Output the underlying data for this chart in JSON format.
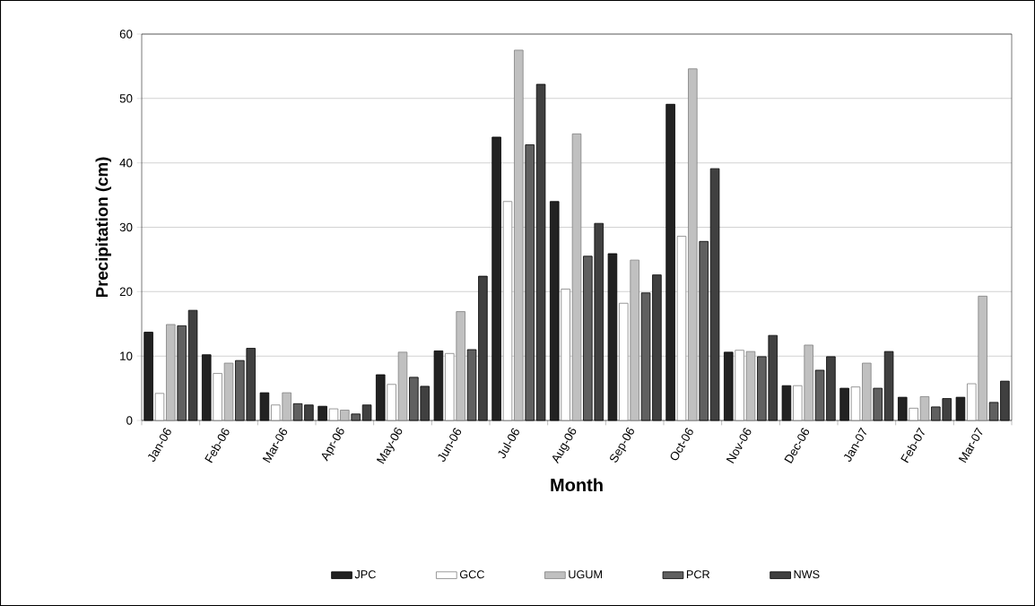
{
  "chart_data": {
    "type": "bar",
    "xlabel": "Month",
    "ylabel": "Precipitation (cm)",
    "categories": [
      "Jan-06",
      "Feb-06",
      "Mar-06",
      "Apr-06",
      "May-06",
      "Jun-06",
      "Jul-06",
      "Aug-06",
      "Sep-06",
      "Oct-06",
      "Nov-06",
      "Dec-06",
      "Jan-07",
      "Feb-07",
      "Mar-07"
    ],
    "series": [
      {
        "name": "JPC",
        "color": "#222222",
        "values": [
          13.7,
          10.2,
          4.3,
          2.2,
          7.1,
          10.8,
          44.0,
          34.0,
          25.9,
          49.1,
          10.6,
          5.4,
          5.0,
          3.6,
          3.6
        ]
      },
      {
        "name": "GCC",
        "color": "#ffffff",
        "values": [
          4.2,
          7.3,
          2.4,
          1.8,
          5.6,
          10.4,
          34.0,
          20.4,
          18.2,
          28.6,
          10.9,
          5.4,
          5.2,
          1.9,
          5.7
        ]
      },
      {
        "name": "UGUM",
        "color": "#c0c0c0",
        "values": [
          14.9,
          8.9,
          4.3,
          1.6,
          10.6,
          16.9,
          57.5,
          44.5,
          24.9,
          54.6,
          10.7,
          11.7,
          8.9,
          3.7,
          19.3
        ]
      },
      {
        "name": "PCR",
        "color": "#606060",
        "values": [
          14.7,
          9.3,
          2.6,
          1.0,
          6.7,
          11.0,
          42.8,
          25.5,
          19.8,
          27.8,
          9.9,
          7.8,
          5.0,
          2.1,
          2.8
        ]
      },
      {
        "name": "NWS",
        "color": "#404040",
        "values": [
          17.1,
          11.2,
          2.4,
          2.4,
          5.3,
          22.4,
          52.2,
          30.6,
          22.6,
          39.1,
          13.2,
          9.9,
          10.7,
          3.4,
          6.1
        ]
      }
    ],
    "ylim": [
      0,
      60
    ],
    "yticks": [
      0,
      10,
      20,
      30,
      40,
      50,
      60
    ],
    "grid": "y",
    "legend": "bottom"
  }
}
